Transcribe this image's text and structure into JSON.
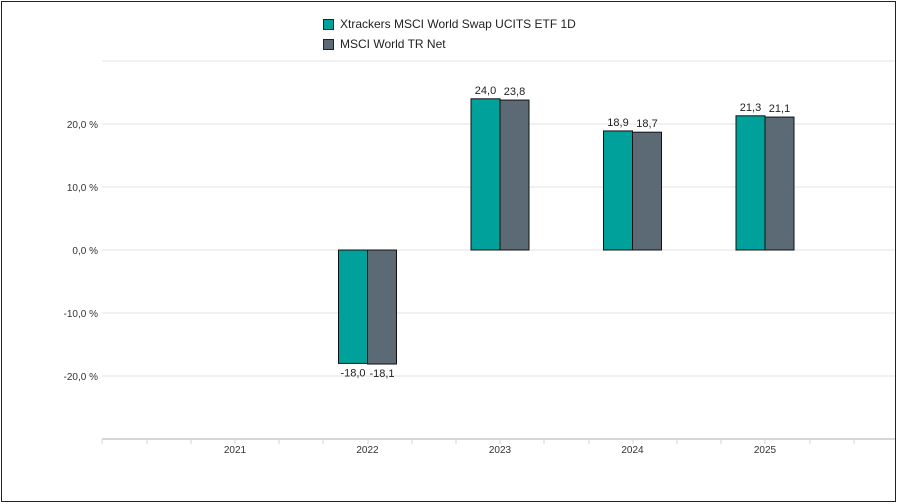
{
  "chart_data": {
    "type": "bar",
    "categories": [
      "2021",
      "2022",
      "2023",
      "2024",
      "2025"
    ],
    "series": [
      {
        "name": "Xtrackers MSCI World Swap UCITS ETF 1D",
        "color": "#00a19a",
        "values": [
          null,
          -18.0,
          24.0,
          18.9,
          21.3
        ],
        "labels": [
          "",
          "-18,0",
          "24,0",
          "18,9",
          "21,3"
        ]
      },
      {
        "name": "MSCI World TR Net",
        "color": "#5b6a74",
        "values": [
          null,
          -18.1,
          23.8,
          18.7,
          21.1
        ],
        "labels": [
          "",
          "-18,1",
          "23,8",
          "18,7",
          "21,1"
        ]
      }
    ],
    "yticks": [
      20,
      10,
      0,
      -10,
      -20
    ],
    "ytick_labels": [
      "20,0 %",
      "10,0 %",
      "0,0 %",
      "-10,0 %",
      "-20,0 %"
    ],
    "ylim": [
      -30,
      30
    ],
    "grid": true,
    "legend_position": "top"
  }
}
